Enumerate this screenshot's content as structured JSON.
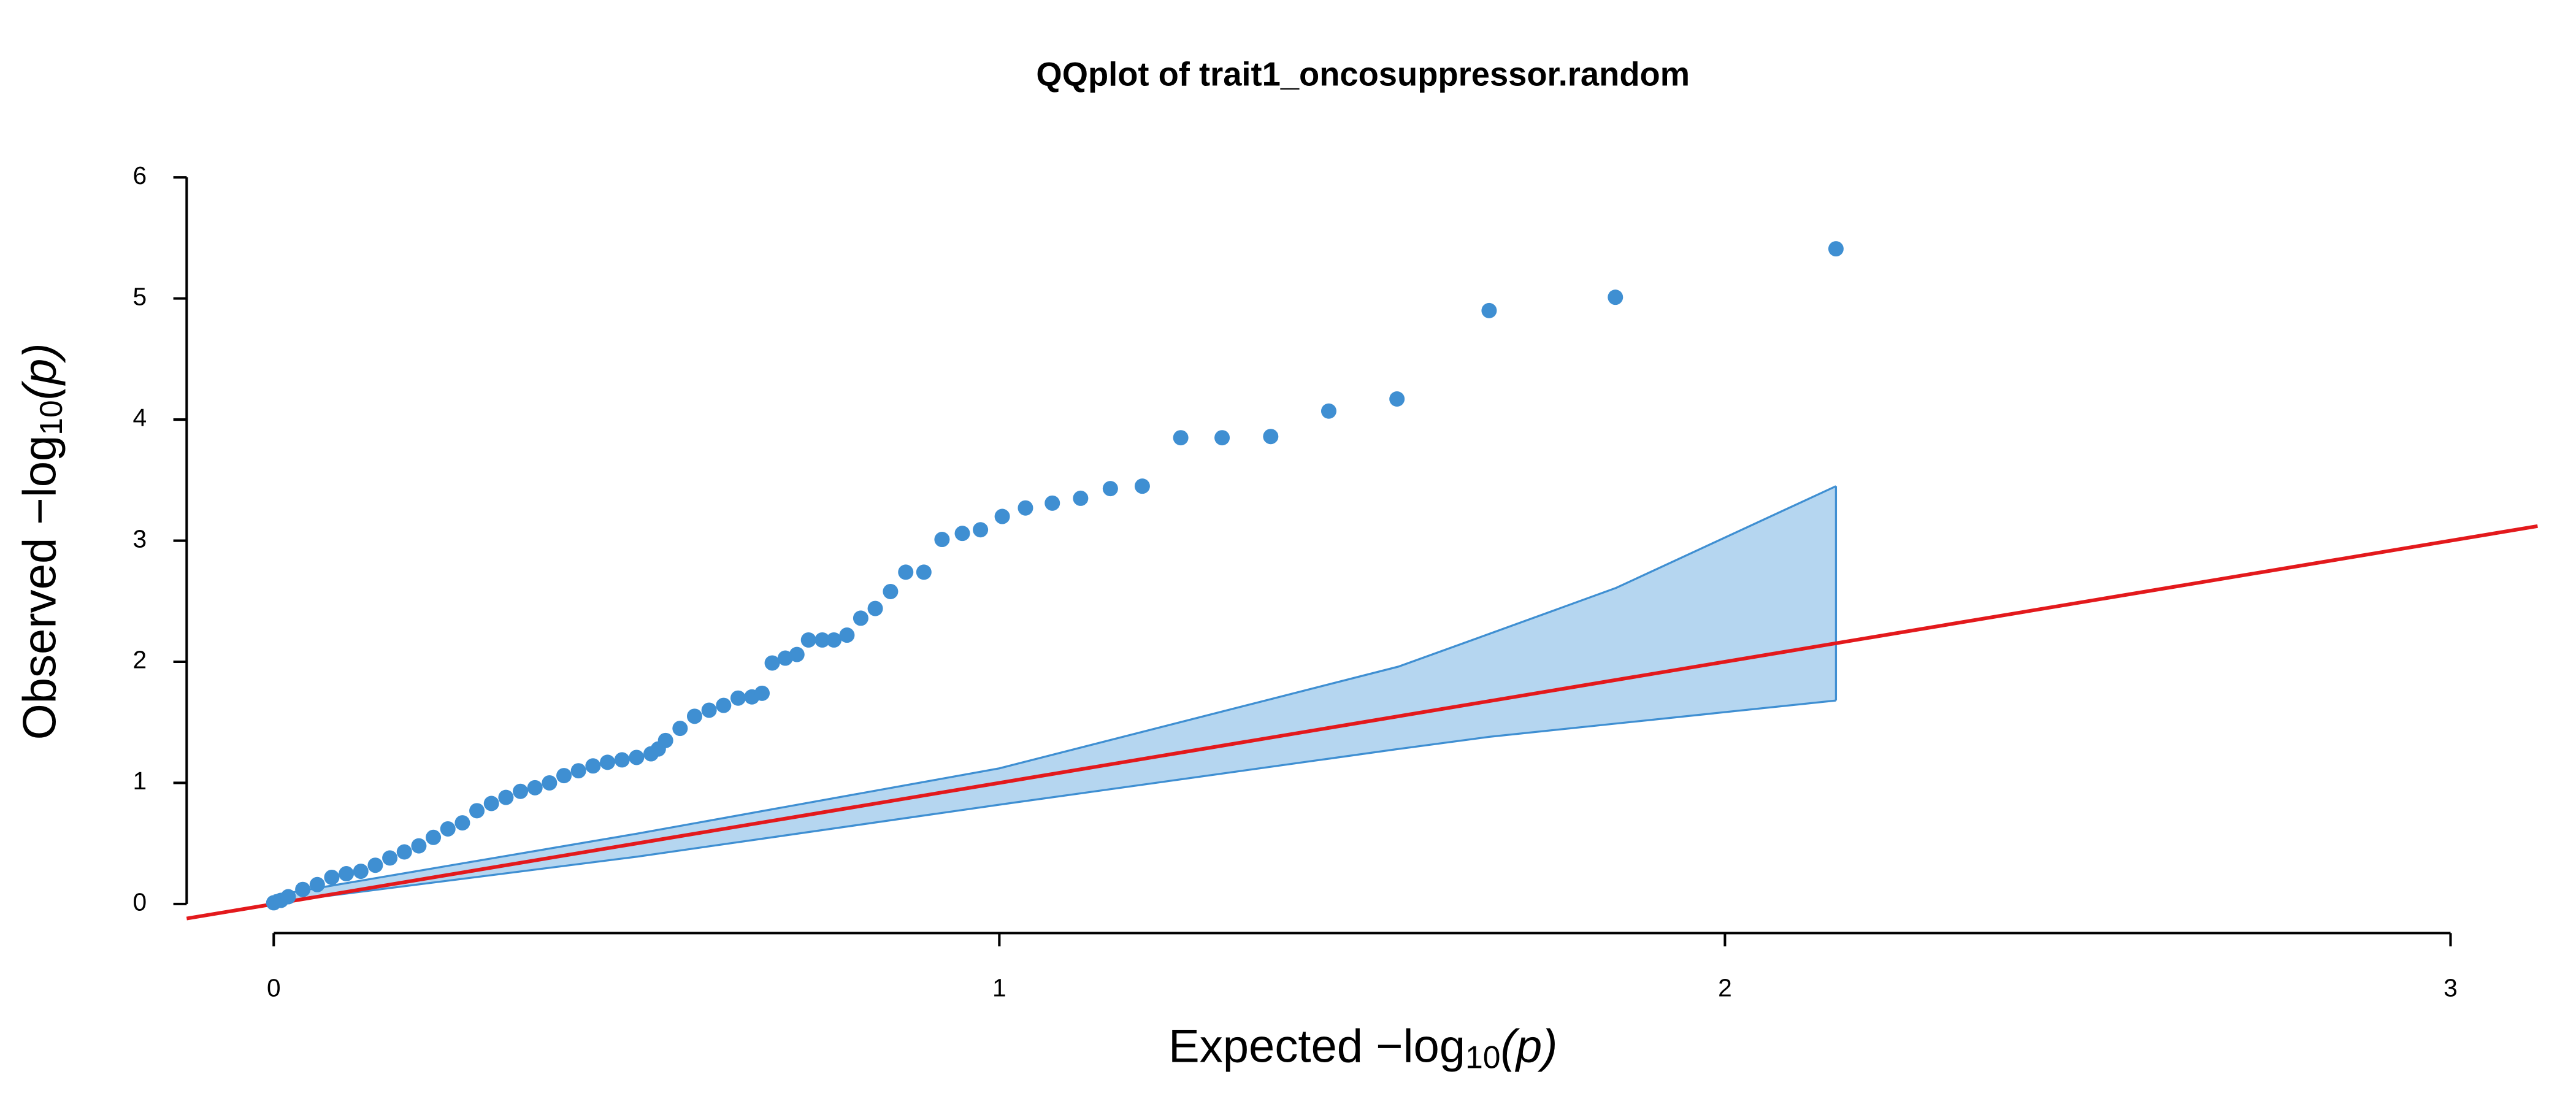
{
  "chart_data": {
    "type": "qq",
    "title": "QQplot of trait1_oncosuppressor.random",
    "x_label": {
      "text": "Expected  −log",
      "subscript": "10",
      "suffix": "(p)"
    },
    "y_label": {
      "text": "Observed  −log",
      "subscript": "10",
      "suffix": "(p)"
    },
    "xlim": [
      -0.12,
      3.12
    ],
    "ylim": [
      -0.24,
      6.24
    ],
    "xticks": [
      0,
      1,
      2,
      3
    ],
    "yticks": [
      0,
      1,
      2,
      3,
      4,
      5,
      6
    ],
    "x": [
      0,
      0.01,
      0.02,
      0.04,
      0.06,
      0.08,
      0.1,
      0.12,
      0.14,
      0.16,
      0.18,
      0.2,
      0.22,
      0.24,
      0.26,
      0.28,
      0.3,
      0.32,
      0.34,
      0.36,
      0.38,
      0.4,
      0.42,
      0.44,
      0.46,
      0.48,
      0.5,
      0.52,
      0.53,
      0.54,
      0.56,
      0.58,
      0.6,
      0.62,
      0.64,
      0.659,
      0.673,
      0.687,
      0.705,
      0.721,
      0.737,
      0.756,
      0.772,
      0.79,
      0.809,
      0.829,
      0.85,
      0.871,
      0.896,
      0.921,
      0.949,
      0.974,
      1.004,
      1.036,
      1.073,
      1.112,
      1.153,
      1.197,
      1.25,
      1.307,
      1.374,
      1.454,
      1.548,
      1.675,
      1.849,
      2.153
    ],
    "series": [
      {
        "color": "#3f8fd2",
        "values": [
          0.01,
          0.03,
          0.06,
          0.12,
          0.16,
          0.22,
          0.25,
          0.27,
          0.32,
          0.38,
          0.43,
          0.48,
          0.55,
          0.62,
          0.67,
          0.77,
          0.83,
          0.88,
          0.93,
          0.96,
          1.0,
          1.06,
          1.1,
          1.14,
          1.17,
          1.19,
          1.21,
          1.24,
          1.28,
          1.35,
          1.45,
          1.55,
          1.6,
          1.64,
          1.7,
          1.71,
          1.74,
          1.99,
          2.03,
          2.06,
          2.18,
          2.18,
          2.18,
          2.22,
          2.36,
          2.44,
          2.58,
          2.74,
          2.74,
          3.01,
          3.06,
          3.09,
          3.2,
          3.27,
          3.31,
          3.35,
          3.43,
          3.45,
          3.85,
          3.85,
          3.86,
          4.07,
          4.17,
          4.9,
          5.01,
          5.41
        ]
      }
    ],
    "band": {
      "color": "#3f8fd2",
      "fill": "#b5d6f0",
      "x": [
        0,
        0.5,
        1.0,
        1.55,
        1.675,
        1.85,
        2.153
      ],
      "upper": [
        0.07,
        0.58,
        1.12,
        1.96,
        2.23,
        2.61,
        3.45
      ],
      "lower": [
        0.01,
        0.39,
        0.82,
        1.28,
        1.38,
        1.49,
        1.68
      ]
    },
    "reference_line": {
      "slope": 1,
      "intercept": 0,
      "color": "#e3191c"
    }
  }
}
